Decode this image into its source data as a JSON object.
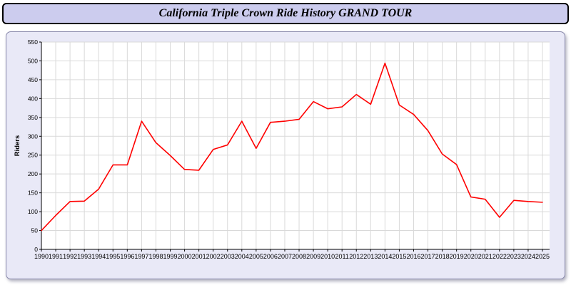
{
  "header": {
    "title": "California Triple Crown Ride History GRAND TOUR"
  },
  "colors": {
    "title_bar_bg": "#ccccee",
    "panel_bg": "#e9e9f7",
    "plot_bg": "#ffffff",
    "grid": "#d9d9d9",
    "line": "#ff0000"
  },
  "chart_data": {
    "type": "line",
    "title": "California Triple Crown Ride History GRAND TOUR",
    "xlabel": "",
    "ylabel": "Riders",
    "ylim": [
      0,
      550
    ],
    "ytick_step": 50,
    "grid": true,
    "legend": "none",
    "line_color": "#ff0000",
    "categories": [
      "1990",
      "1991",
      "1992",
      "1993",
      "1994",
      "1995",
      "1996",
      "1997",
      "1998",
      "1999",
      "2000",
      "2001",
      "2002",
      "2003",
      "2004",
      "2005",
      "2006",
      "2007",
      "2008",
      "2009",
      "2010",
      "2011",
      "2012",
      "2013",
      "2014",
      "2015",
      "2016",
      "2017",
      "2018",
      "2019",
      "2020",
      "2021",
      "2022",
      "2023",
      "2024",
      "2025"
    ],
    "values": [
      50,
      90,
      127,
      128,
      160,
      224,
      224,
      340,
      283,
      249,
      212,
      210,
      265,
      277,
      340,
      268,
      337,
      340,
      345,
      392,
      373,
      378,
      411,
      385,
      494,
      383,
      358,
      315,
      253,
      225,
      139,
      133,
      85,
      130,
      127,
      125
    ]
  }
}
